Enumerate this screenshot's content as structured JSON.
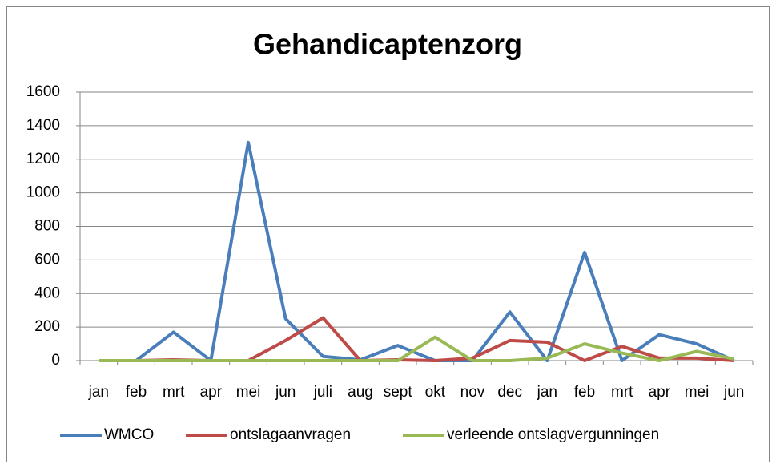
{
  "chart_data": {
    "type": "line",
    "title": "Gehandicaptenzorg",
    "categories": [
      "jan",
      "feb",
      "mrt",
      "apr",
      "mei",
      "jun",
      "juli",
      "aug",
      "sept",
      "okt",
      "nov",
      "dec",
      "jan",
      "feb",
      "mrt",
      "apr",
      "mei",
      "jun"
    ],
    "series": [
      {
        "name": "WMCO",
        "color": "#4a7ebb",
        "values": [
          0,
          0,
          170,
          0,
          1300,
          250,
          25,
          5,
          90,
          0,
          0,
          290,
          0,
          645,
          0,
          155,
          100,
          0
        ]
      },
      {
        "name": "ontslagaanvragen",
        "color": "#be4b48",
        "values": [
          0,
          0,
          5,
          0,
          0,
          120,
          255,
          0,
          5,
          0,
          15,
          120,
          110,
          0,
          85,
          15,
          15,
          0
        ]
      },
      {
        "name": "verleende ontslagvergunningen",
        "color": "#98b954",
        "values": [
          0,
          0,
          0,
          0,
          0,
          0,
          0,
          0,
          0,
          140,
          0,
          0,
          15,
          100,
          45,
          0,
          55,
          10
        ]
      }
    ],
    "ylim": [
      0,
      1600
    ],
    "yticks": [
      0,
      200,
      400,
      600,
      800,
      1000,
      1200,
      1400,
      1600
    ],
    "grid": true,
    "legend": "bottom"
  }
}
